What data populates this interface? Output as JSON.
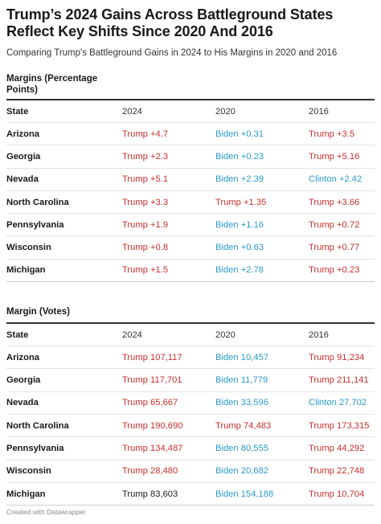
{
  "title": "Trump’s 2024 Gains Across Battleground States Reflect Key Shifts Since 2020 And 2016",
  "subtitle": "Comparing Trump's Battleground Gains in 2024 to His Margins in 2020 and 2016",
  "footer": "Created with Datawrapper",
  "colors": {
    "trump": "#c8302e",
    "democrat": "#2a9ac9",
    "text": "#1d1d1d"
  },
  "chart_data": {
    "type": "table",
    "tables": [
      {
        "title": "Margins (Percentage Points)",
        "columns": [
          "State",
          "2024",
          "2020",
          "2016"
        ],
        "rows": [
          {
            "state": "Arizona",
            "y2024": "Trump +4.7",
            "y2020": "Biden +0.31",
            "y2016": "Trump +3.5"
          },
          {
            "state": "Georgia",
            "y2024": "Trump +2.3",
            "y2020": "Biden +0.23",
            "y2016": "Trump +5.16"
          },
          {
            "state": "Nevada",
            "y2024": "Trump +5.1",
            "y2020": "Biden +2.39",
            "y2016": "Clinton +2.42"
          },
          {
            "state": "North Carolina",
            "y2024": "Trump +3.3",
            "y2020": "Trump +1.35",
            "y2016": "Trump +3.66"
          },
          {
            "state": "Pennsylvania",
            "y2024": "Trump +1.9",
            "y2020": "Biden +1.16",
            "y2016": "Trump +0.72"
          },
          {
            "state": "Wisconsin",
            "y2024": "Trump +0.8",
            "y2020": "Biden +0.63",
            "y2016": "Trump +0.77"
          },
          {
            "state": "Michigan",
            "y2024": "Trump +1.5",
            "y2020": "Biden +2.78",
            "y2016": "Trump +0.23"
          }
        ]
      },
      {
        "title": "Margin (Votes)",
        "columns": [
          "State",
          "2024",
          "2020",
          "2016"
        ],
        "rows": [
          {
            "state": "Arizona",
            "y2024": "Trump 107,117",
            "y2020": "Biden 10,457",
            "y2016": "Trump 91,234"
          },
          {
            "state": "Georgia",
            "y2024": "Trump 117,701",
            "y2020": "Biden 11,779",
            "y2016": "Trump 211,141"
          },
          {
            "state": "Nevada",
            "y2024": "Trump 65,667",
            "y2020": "Biden 33,596",
            "y2016": "Clinton 27.702"
          },
          {
            "state": "North Carolina",
            "y2024": "Trump 190,690",
            "y2020": "Trump 74,483",
            "y2016": "Trump 173,315"
          },
          {
            "state": "Pennsylvania",
            "y2024": "Trump 134,487",
            "y2020": "Biden 80,555",
            "y2016": "Trump 44,292"
          },
          {
            "state": "Wisconsin",
            "y2024": "Trump 28,480",
            "y2020": "Biden 20,682",
            "y2016": "Trump 22,748"
          },
          {
            "state": "Michigan",
            "y2024": "Trump 83,603",
            "y2020": "Biden 154,188",
            "y2016": "Trump 10,704"
          }
        ]
      }
    ]
  }
}
